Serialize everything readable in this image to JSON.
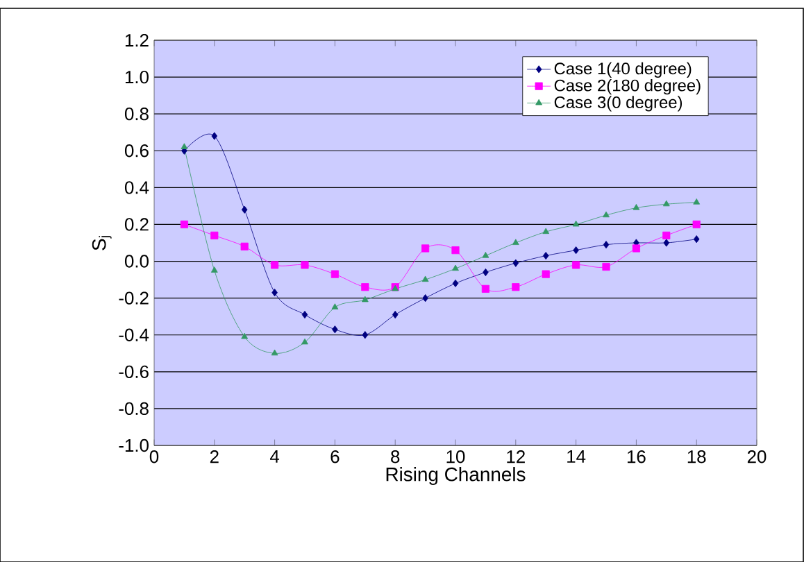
{
  "chart_data": {
    "type": "line",
    "xlabel": "Rising Channels",
    "ylabel": "S$_{j}$",
    "x": [
      1,
      2,
      3,
      4,
      5,
      6,
      7,
      8,
      9,
      10,
      11,
      12,
      13,
      14,
      15,
      16,
      17,
      18
    ],
    "series": [
      {
        "name": "Case 1(40 degree)",
        "color": "#000080",
        "marker": "diamond",
        "values": [
          0.6,
          0.68,
          0.28,
          -0.17,
          -0.29,
          -0.37,
          -0.4,
          -0.29,
          -0.2,
          -0.12,
          -0.06,
          -0.01,
          0.03,
          0.06,
          0.09,
          0.1,
          0.1,
          0.12
        ]
      },
      {
        "name": "Case 2(180 degree)",
        "color": "#ff00ff",
        "marker": "square",
        "values": [
          0.2,
          0.14,
          0.08,
          -0.02,
          -0.02,
          -0.07,
          -0.14,
          -0.14,
          0.07,
          0.06,
          -0.15,
          -0.14,
          -0.07,
          -0.02,
          -0.03,
          0.07,
          0.14,
          0.2
        ]
      },
      {
        "name": "Case 3(0 degree)",
        "color": "#339966",
        "marker": "triangle",
        "values": [
          0.62,
          -0.05,
          -0.41,
          -0.5,
          -0.44,
          -0.25,
          -0.21,
          -0.15,
          -0.1,
          -0.04,
          0.03,
          0.1,
          0.16,
          0.2,
          0.25,
          0.29,
          0.31,
          0.32
        ]
      }
    ],
    "xlim": [
      0,
      20
    ],
    "xticks": [
      0,
      2,
      4,
      6,
      8,
      10,
      12,
      14,
      16,
      18,
      20
    ],
    "ylim": [
      -1.0,
      1.2
    ],
    "yticks": [
      {
        "value": -1.0,
        "label": "-1.0"
      },
      {
        "value": -0.8,
        "label": "-0.8"
      },
      {
        "value": -0.6,
        "label": "-0.6"
      },
      {
        "value": -0.4,
        "label": "-0.4"
      },
      {
        "value": -0.2,
        "label": "-0.2"
      },
      {
        "value": 0.0,
        "label": "0.0"
      },
      {
        "value": 0.2,
        "label": "0.2"
      },
      {
        "value": 0.4,
        "label": "0.4"
      },
      {
        "value": 0.6,
        "label": "0.6"
      },
      {
        "value": 0.8,
        "label": "0.8"
      },
      {
        "value": 1.0,
        "label": "1.0"
      },
      {
        "value": 1.2,
        "label": "1.2"
      }
    ],
    "grid": "y",
    "legend": "top right",
    "line_style": "solid"
  }
}
